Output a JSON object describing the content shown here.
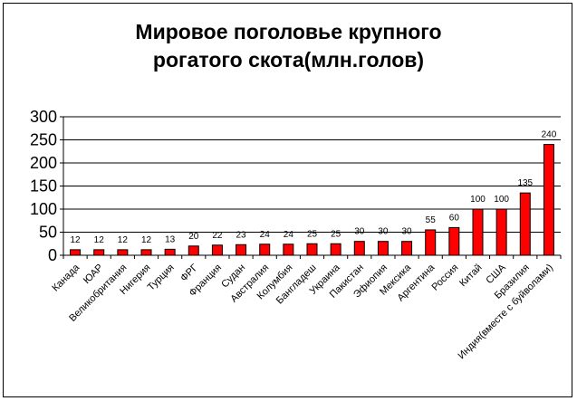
{
  "chart_data": {
    "type": "bar",
    "title_line1": "Мировое поголовье крупного",
    "title_line2": "рогатого скота(млн.голов)",
    "categories": [
      "Канада",
      "ЮАР",
      "Великобритания",
      "Нигерия",
      "Турция",
      "ФРГ",
      "Франция",
      "Судан",
      "Австралия",
      "Колумбия",
      "Бангладеш",
      "Украина",
      "Пакистан",
      "Эфиопия",
      "Мексика",
      "Аргентина",
      "Россия",
      "Китай",
      "США",
      "Бразилия",
      "Индия(вместе с буйволами)"
    ],
    "values": [
      12,
      12,
      12,
      12,
      13,
      20,
      22,
      23,
      24,
      24,
      25,
      25,
      30,
      30,
      30,
      55,
      60,
      100,
      100,
      135,
      240
    ],
    "ylim": [
      0,
      300
    ],
    "yticks": [
      "0",
      "50",
      "100",
      "150",
      "200",
      "250",
      "300"
    ],
    "grid": true,
    "bar_color": "#ff0000"
  }
}
